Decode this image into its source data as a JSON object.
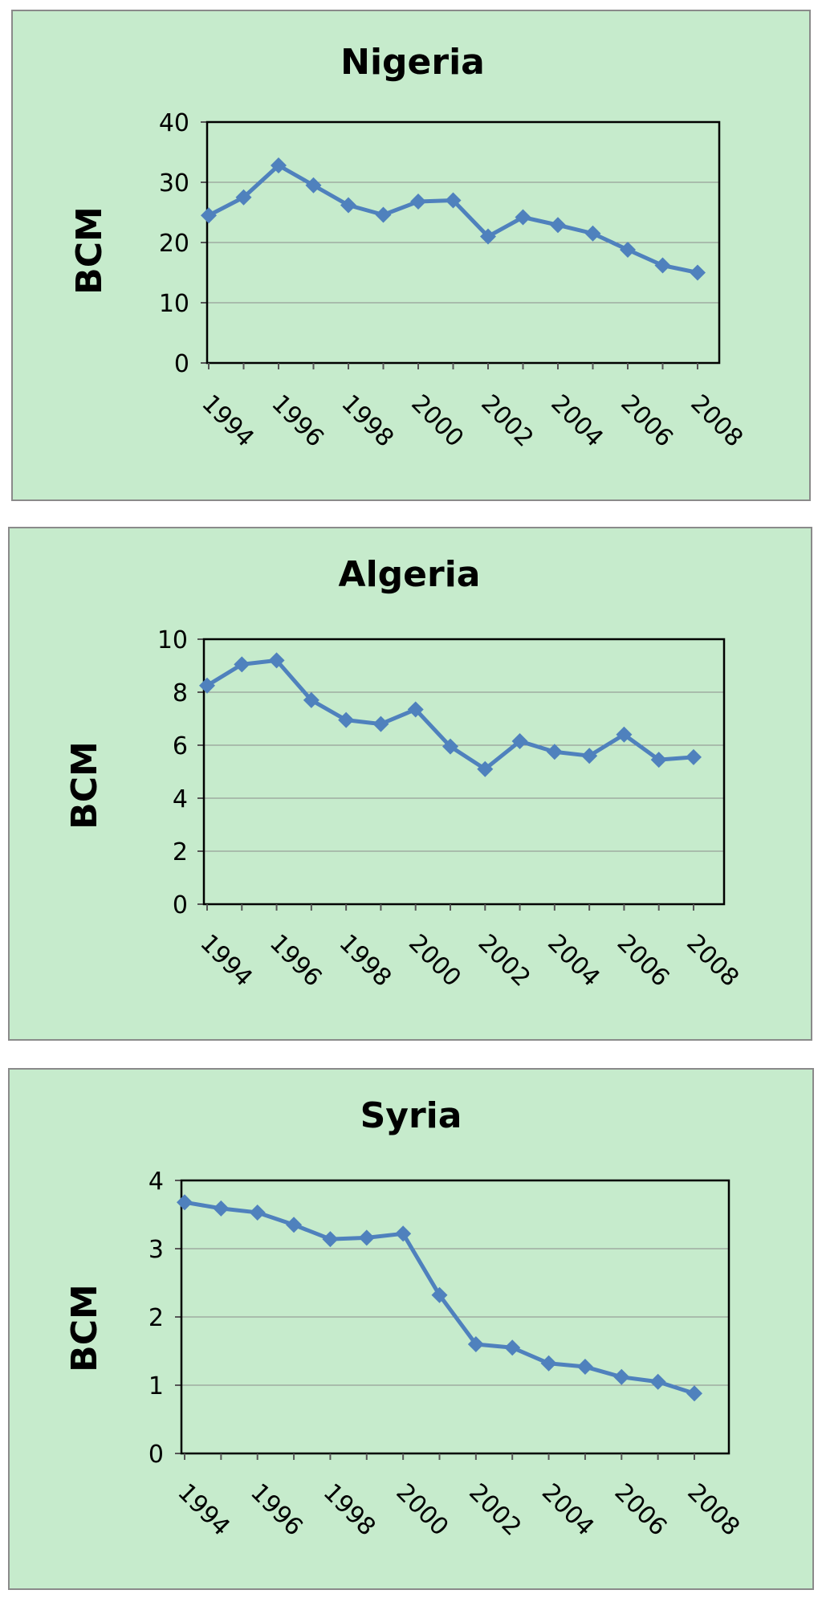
{
  "chart_data": [
    {
      "type": "line",
      "title": "Nigeria",
      "ylabel": "BCM",
      "xlabel": "",
      "ylim": [
        0,
        40
      ],
      "yticks": [
        "0",
        "10",
        "20",
        "30",
        "40"
      ],
      "xtick_labels": [
        "1994",
        "1996",
        "1998",
        "2000",
        "2002",
        "2004",
        "2006",
        "2008"
      ],
      "x": [
        1994,
        1995,
        1996,
        1997,
        1998,
        1999,
        2000,
        2001,
        2002,
        2003,
        2004,
        2005,
        2006,
        2007,
        2008
      ],
      "series": [
        {
          "values": [
            24.5,
            27.5,
            32.8,
            29.5,
            26.2,
            24.6,
            26.8,
            27.0,
            21.0,
            24.2,
            22.9,
            21.5,
            18.8,
            16.2,
            15.0
          ]
        }
      ],
      "grid": true,
      "colors": {
        "line": "#4f81bd",
        "background": "#c6ebcc"
      }
    },
    {
      "type": "line",
      "title": "Algeria",
      "ylabel": "BCM",
      "xlabel": "",
      "ylim": [
        0,
        10
      ],
      "yticks": [
        "0",
        "2",
        "4",
        "6",
        "8",
        "10"
      ],
      "xtick_labels": [
        "1994",
        "1996",
        "1998",
        "2000",
        "2002",
        "2004",
        "2006",
        "2008"
      ],
      "x": [
        1994,
        1995,
        1996,
        1997,
        1998,
        1999,
        2000,
        2001,
        2002,
        2003,
        2004,
        2005,
        2006,
        2007,
        2008
      ],
      "series": [
        {
          "values": [
            8.25,
            9.05,
            9.2,
            7.7,
            6.95,
            6.8,
            7.35,
            5.95,
            5.1,
            6.15,
            5.75,
            5.6,
            6.4,
            5.45,
            5.55
          ]
        }
      ],
      "grid": true,
      "colors": {
        "line": "#4f81bd",
        "background": "#c6ebcc"
      }
    },
    {
      "type": "line",
      "title": "Syria",
      "ylabel": "BCM",
      "xlabel": "",
      "ylim": [
        0,
        4
      ],
      "yticks": [
        "0",
        "1",
        "2",
        "3",
        "4"
      ],
      "xtick_labels": [
        "1994",
        "1996",
        "1998",
        "2000",
        "2002",
        "2004",
        "2006",
        "2008"
      ],
      "x": [
        1994,
        1995,
        1996,
        1997,
        1998,
        1999,
        2000,
        2001,
        2002,
        2003,
        2004,
        2005,
        2006,
        2007,
        2008
      ],
      "series": [
        {
          "values": [
            3.68,
            3.59,
            3.53,
            3.35,
            3.14,
            3.16,
            3.22,
            2.32,
            1.6,
            1.55,
            1.32,
            1.27,
            1.12,
            1.05,
            0.88
          ]
        }
      ],
      "grid": true,
      "colors": {
        "line": "#4f81bd",
        "background": "#c6ebcc"
      }
    }
  ]
}
